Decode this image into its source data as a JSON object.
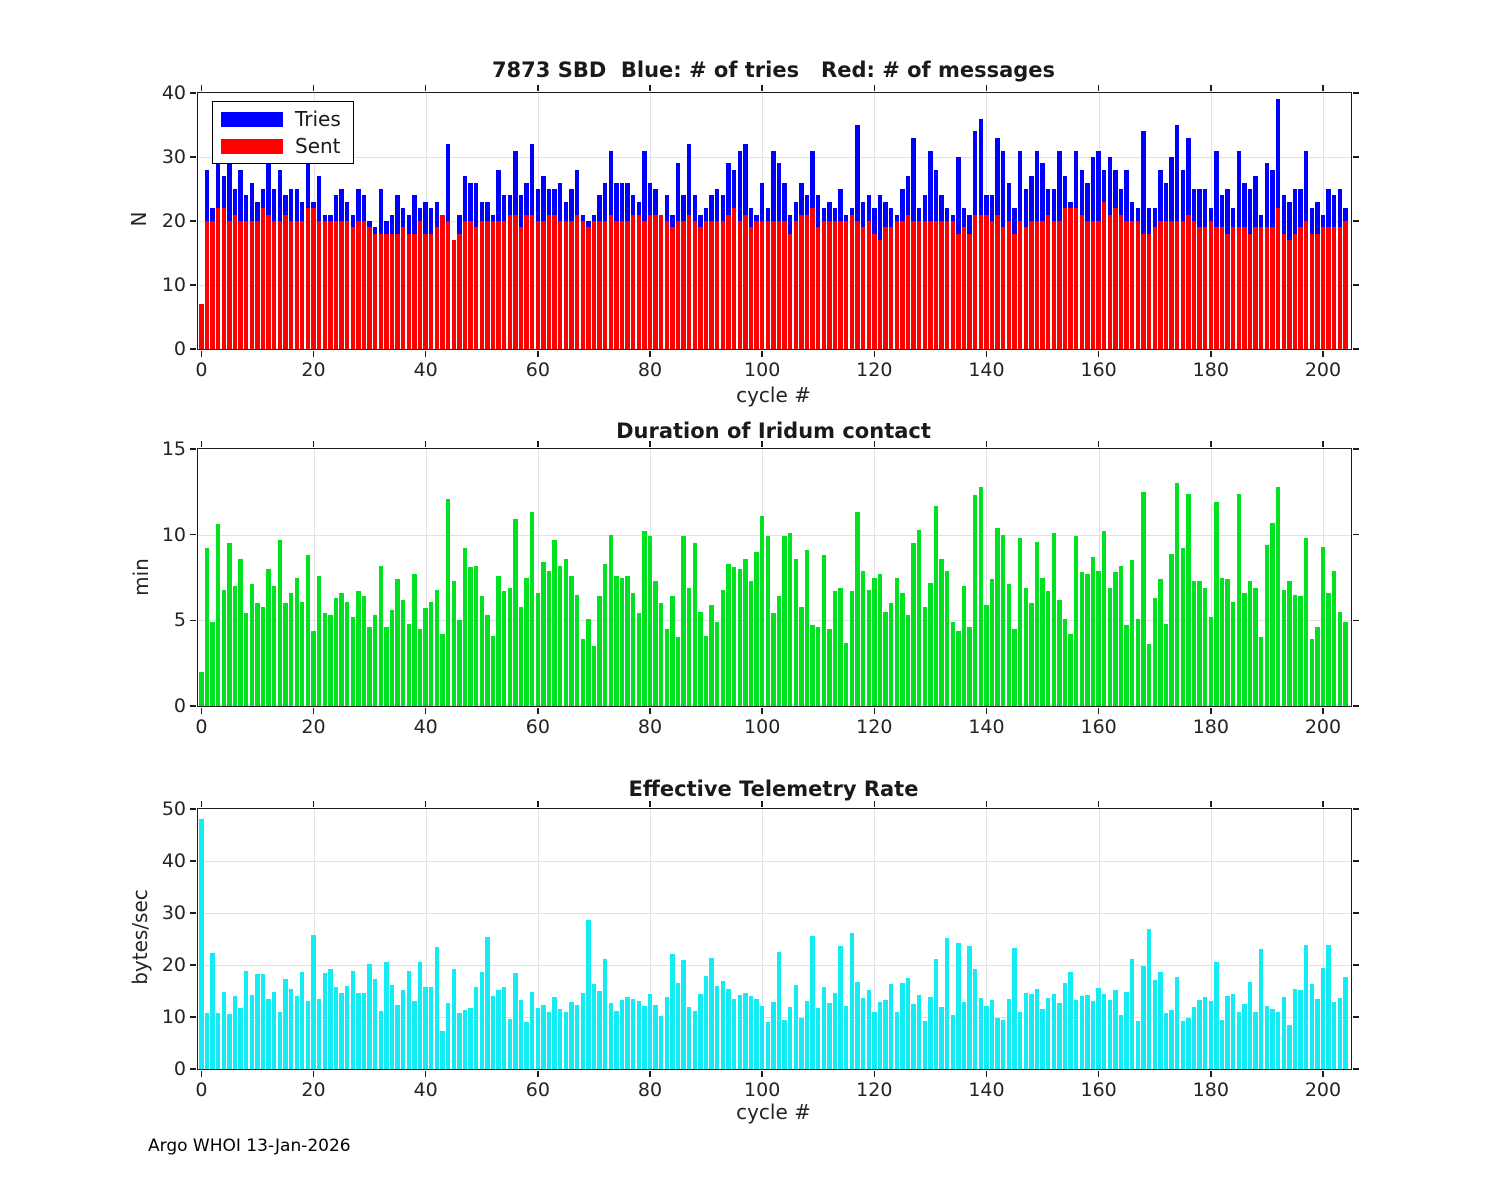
{
  "figure": {
    "footer": "Argo WHOI 13-Jan-2026"
  },
  "chart_data": [
    {
      "type": "bar",
      "title": "7873 SBD  Blue: # of tries   Red: # of messages",
      "xlabel": "cycle #",
      "ylabel": "N",
      "ylim": [
        0,
        40
      ],
      "yticks": [
        0,
        10,
        20,
        30,
        40
      ],
      "xticks": [
        0,
        20,
        40,
        60,
        80,
        100,
        120,
        140,
        160,
        180,
        200
      ],
      "xlim": [
        0,
        205
      ],
      "grid": true,
      "legend_position": "top-left",
      "series": [
        {
          "name": "Tries",
          "color": "#0000ff",
          "values": [
            7,
            28,
            22,
            31,
            27,
            31,
            25,
            28,
            24,
            26,
            23,
            25,
            30,
            25,
            28,
            24,
            25,
            25,
            23,
            31,
            23,
            27,
            21,
            21,
            24,
            25,
            23,
            21,
            25,
            24,
            20,
            19,
            25,
            20,
            21,
            24,
            22,
            21,
            24,
            22,
            23,
            22,
            23,
            21,
            32,
            17,
            21,
            27,
            26,
            26,
            23,
            23,
            21,
            28,
            24,
            24,
            31,
            24,
            26,
            32,
            25,
            27,
            25,
            25,
            26,
            23,
            25,
            28,
            21,
            20,
            21,
            24,
            26,
            31,
            26,
            26,
            26,
            24,
            23,
            31,
            26,
            25,
            21,
            24,
            21,
            29,
            24,
            32,
            24,
            21,
            22,
            24,
            25,
            24,
            29,
            28,
            31,
            32,
            22,
            21,
            26,
            22,
            31,
            29,
            26,
            21,
            23,
            26,
            24,
            31,
            24,
            22,
            23,
            22,
            25,
            21,
            22,
            35,
            23,
            24,
            22,
            24,
            23,
            22,
            21,
            25,
            27,
            33,
            22,
            24,
            31,
            28,
            24,
            22,
            21,
            30,
            22,
            21,
            34,
            36,
            24,
            24,
            33,
            31,
            26,
            22,
            31,
            25,
            27,
            31,
            29,
            25,
            25,
            31,
            27,
            23,
            31,
            28,
            26,
            30,
            31,
            28,
            30,
            28,
            25,
            28,
            23,
            22,
            34,
            22,
            22,
            28,
            26,
            30,
            35,
            28,
            33,
            25,
            25,
            25,
            22,
            31,
            24,
            25,
            22,
            31,
            26,
            25,
            27,
            21,
            29,
            28,
            39,
            24,
            23,
            25,
            25,
            31,
            22,
            23,
            21,
            25,
            24,
            25,
            22
          ]
        },
        {
          "name": "Sent",
          "color": "#ff0000",
          "values": [
            7,
            20,
            20,
            22,
            22,
            20,
            21,
            20,
            20,
            20,
            20,
            22,
            21,
            20,
            20,
            21,
            20,
            20,
            20,
            22,
            22,
            20,
            20,
            20,
            20,
            20,
            20,
            19,
            20,
            20,
            19,
            18,
            18,
            18,
            18,
            18,
            19,
            18,
            18,
            20,
            18,
            18,
            19,
            21,
            20,
            17,
            18,
            20,
            20,
            19,
            20,
            20,
            20,
            20,
            20,
            21,
            21,
            19,
            21,
            21,
            20,
            20,
            21,
            21,
            20,
            20,
            20,
            21,
            20,
            19,
            20,
            20,
            20,
            21,
            20,
            20,
            20,
            21,
            21,
            20,
            21,
            21,
            21,
            20,
            19,
            20,
            20,
            21,
            20,
            19,
            20,
            20,
            20,
            20,
            21,
            22,
            20,
            21,
            19,
            20,
            20,
            20,
            20,
            20,
            20,
            18,
            20,
            21,
            21,
            22,
            19,
            20,
            20,
            20,
            20,
            20,
            21,
            20,
            19,
            20,
            18,
            17,
            19,
            19,
            20,
            20,
            21,
            20,
            20,
            20,
            20,
            20,
            20,
            20,
            20,
            18,
            19,
            18,
            21,
            21,
            21,
            20,
            21,
            19,
            20,
            18,
            20,
            19,
            20,
            20,
            20,
            21,
            20,
            20,
            22,
            22,
            22,
            21,
            20,
            20,
            20,
            23,
            21,
            22,
            21,
            20,
            20,
            20,
            18,
            18,
            19,
            20,
            20,
            20,
            20,
            20,
            21,
            20,
            19,
            19,
            20,
            19,
            19,
            18,
            19,
            19,
            19,
            18,
            19,
            19,
            19,
            19,
            22,
            18,
            17,
            18,
            19,
            20,
            18,
            18,
            19,
            19,
            19,
            19,
            20
          ]
        }
      ]
    },
    {
      "type": "bar",
      "title": "Duration of Iridum contact",
      "xlabel": "",
      "ylabel": "min",
      "ylim": [
        0,
        15
      ],
      "yticks": [
        0,
        5,
        10,
        15
      ],
      "xticks": [
        0,
        20,
        40,
        60,
        80,
        100,
        120,
        140,
        160,
        180,
        200
      ],
      "xlim": [
        0,
        205
      ],
      "grid": true,
      "series": [
        {
          "name": "Duration",
          "color": "#00e120",
          "values": [
            2.0,
            9.2,
            4.9,
            10.6,
            6.8,
            9.5,
            7.0,
            8.6,
            5.4,
            7.1,
            6.0,
            5.8,
            8.0,
            7.0,
            9.7,
            6.0,
            6.6,
            7.5,
            6.1,
            8.8,
            4.4,
            7.6,
            5.4,
            5.3,
            6.3,
            6.6,
            6.1,
            5.2,
            6.7,
            6.4,
            4.6,
            5.3,
            8.2,
            4.6,
            5.6,
            7.4,
            6.2,
            4.8,
            7.7,
            4.5,
            5.7,
            6.1,
            6.8,
            4.2,
            12.1,
            7.3,
            5.0,
            9.2,
            8.1,
            8.2,
            6.4,
            5.3,
            4.1,
            7.6,
            6.7,
            6.9,
            10.9,
            5.8,
            7.5,
            11.3,
            6.6,
            8.4,
            7.9,
            9.7,
            8.2,
            8.6,
            7.6,
            6.5,
            3.9,
            5.1,
            3.5,
            6.4,
            8.3,
            10.0,
            7.6,
            7.5,
            7.6,
            6.6,
            5.4,
            10.2,
            9.9,
            7.3,
            6.0,
            4.5,
            6.4,
            4.0,
            9.9,
            6.9,
            9.5,
            5.5,
            4.1,
            5.9,
            4.9,
            6.8,
            8.3,
            8.1,
            8.0,
            8.6,
            7.3,
            9.0,
            11.1,
            9.9,
            5.4,
            6.4,
            9.9,
            10.1,
            8.6,
            5.8,
            9.1,
            4.7,
            4.6,
            8.8,
            4.5,
            6.7,
            6.9,
            3.7,
            6.7,
            11.3,
            7.9,
            6.8,
            7.5,
            7.7,
            5.5,
            6.0,
            7.5,
            6.6,
            5.3,
            9.5,
            10.3,
            5.8,
            7.2,
            11.7,
            8.6,
            7.9,
            4.9,
            4.4,
            7.0,
            4.6,
            12.3,
            12.8,
            5.9,
            7.4,
            10.4,
            10.0,
            7.1,
            4.5,
            9.8,
            6.9,
            6.0,
            9.6,
            7.5,
            6.7,
            10.1,
            6.2,
            5.1,
            4.2,
            9.9,
            7.8,
            7.7,
            8.7,
            7.9,
            10.2,
            6.9,
            7.8,
            8.2,
            4.7,
            8.5,
            5.1,
            12.5,
            3.6,
            6.3,
            7.4,
            4.8,
            8.9,
            13.0,
            9.2,
            12.4,
            7.3,
            7.3,
            6.9,
            5.2,
            11.9,
            7.5,
            7.4,
            6.1,
            12.4,
            6.6,
            7.3,
            6.9,
            4.0,
            9.4,
            10.7,
            12.8,
            6.8,
            7.3,
            6.5,
            6.4,
            9.8,
            3.9,
            4.6,
            9.3,
            6.6,
            7.9,
            5.5,
            4.9
          ]
        }
      ]
    },
    {
      "type": "bar",
      "title": "Effective Telemetry Rate",
      "xlabel": "cycle #",
      "ylabel": "bytes/sec",
      "ylim": [
        0,
        50
      ],
      "yticks": [
        0,
        10,
        20,
        30,
        40,
        50
      ],
      "xticks": [
        0,
        20,
        40,
        60,
        80,
        100,
        120,
        140,
        160,
        180,
        200
      ],
      "xlim": [
        0,
        205
      ],
      "grid": true,
      "series": [
        {
          "name": "Rate",
          "color": "#12ecf2",
          "values": [
            48.0,
            10.8,
            22.4,
            10.8,
            14.8,
            10.6,
            14.0,
            11.8,
            18.9,
            14.3,
            18.3,
            18.3,
            13.4,
            14.9,
            11.0,
            17.3,
            15.4,
            14.1,
            18.7,
            13.0,
            25.8,
            13.5,
            18.5,
            19.2,
            15.8,
            14.7,
            16.0,
            18.9,
            14.6,
            14.7,
            20.2,
            17.3,
            11.2,
            20.6,
            16.2,
            12.3,
            15.2,
            18.9,
            13.0,
            20.6,
            15.7,
            15.7,
            23.4,
            7.3,
            12.6,
            19.2,
            10.7,
            11.3,
            11.8,
            15.8,
            18.6,
            25.3,
            14.1,
            15.1,
            15.7,
            9.6,
            18.5,
            13.2,
            9.0,
            14.8,
            11.7,
            12.4,
            10.9,
            13.8,
            11.5,
            11.0,
            12.9,
            12.3,
            14.7,
            28.7,
            16.4,
            15.0,
            21.2,
            12.7,
            11.1,
            13.3,
            13.9,
            13.5,
            13.1,
            12.2,
            14.4,
            12.3,
            10.2,
            13.9,
            22.1,
            16.5,
            21.0,
            12.0,
            11.1,
            14.4,
            17.8,
            21.3,
            15.9,
            16.9,
            15.4,
            13.5,
            14.3,
            14.6,
            14.0,
            13.4,
            12.1,
            9.1,
            12.8,
            22.5,
            9.5,
            12.0,
            16.2,
            9.8,
            13.1,
            25.6,
            11.7,
            15.8,
            12.6,
            14.7,
            23.7,
            12.2,
            26.1,
            16.8,
            13.7,
            15.2,
            10.9,
            12.9,
            13.2,
            16.4,
            11.0,
            16.6,
            17.5,
            12.5,
            14.2,
            9.3,
            13.9,
            21.1,
            12.0,
            25.1,
            10.3,
            24.3,
            12.9,
            23.6,
            19.3,
            13.7,
            12.2,
            13.2,
            9.9,
            9.4,
            13.5,
            23.3,
            11.0,
            14.7,
            14.4,
            15.3,
            11.5,
            13.7,
            14.5,
            12.6,
            16.6,
            18.6,
            13.2,
            14.0,
            14.3,
            13.1,
            15.6,
            14.4,
            13.2,
            15.1,
            10.3,
            14.9,
            21.2,
            9.2,
            19.8,
            26.9,
            17.1,
            18.7,
            10.8,
            11.4,
            17.6,
            9.3,
            9.8,
            12.0,
            13.3,
            13.8,
            13.0,
            20.5,
            9.5,
            14.1,
            14.5,
            11.0,
            12.5,
            16.8,
            10.9,
            23.1,
            12.1,
            11.6,
            11.0,
            13.9,
            8.5,
            15.4,
            15.1,
            23.9,
            16.3,
            13.4,
            19.4,
            23.9,
            12.9,
            13.7,
            17.7
          ]
        }
      ]
    }
  ]
}
